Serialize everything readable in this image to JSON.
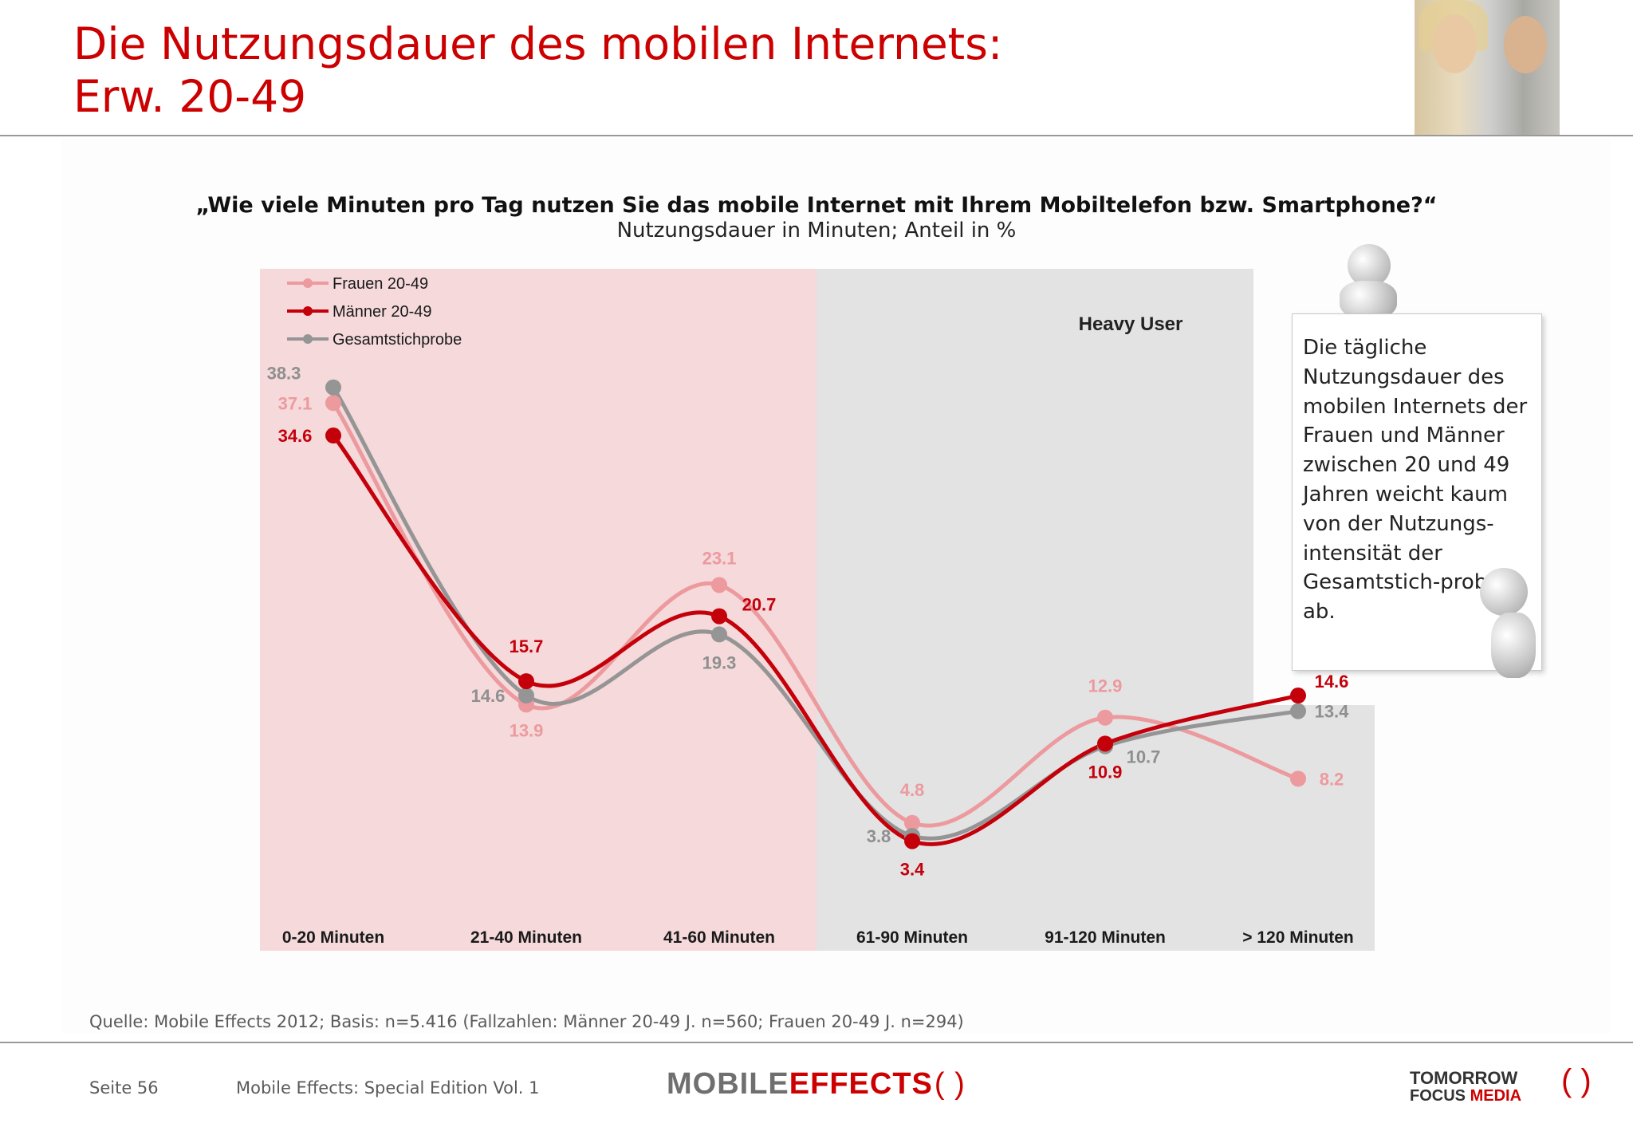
{
  "title": {
    "line1": "Die Nutzungsdauer des mobilen Internets:",
    "line2": "Erw. 20-49"
  },
  "question": "„Wie viele Minuten pro Tag nutzen Sie das mobile Internet mit Ihrem Mobiltelefon bzw. Smartphone?“",
  "subtitle": "Nutzungsdauer in Minuten; Anteil in %",
  "colors": {
    "brand_red": "#cc0000",
    "frauen": "#ec9a9e",
    "maenner": "#c4000a",
    "gesamt": "#959595",
    "light_zone": "#f5d9db",
    "heavy_zone": "#e3e3e4"
  },
  "chart_data": {
    "type": "line",
    "categories": [
      "0-20 Minuten",
      "21-40 Minuten",
      "41-60 Minuten",
      "61-90 Minuten",
      "91-120 Minuten",
      "> 120 Minuten"
    ],
    "series": [
      {
        "name": "Frauen 20-49",
        "color": "#ec9a9e",
        "values": [
          37.1,
          13.9,
          23.1,
          4.8,
          12.9,
          8.2
        ]
      },
      {
        "name": "Männer 20-49",
        "color": "#c4000a",
        "values": [
          34.6,
          15.7,
          20.7,
          3.4,
          10.9,
          14.6
        ]
      },
      {
        "name": "Gesamtstichprobe",
        "color": "#959595",
        "values": [
          38.3,
          14.6,
          19.3,
          3.8,
          10.7,
          13.4
        ]
      }
    ],
    "ylim": [
      0,
      60
    ],
    "grid": false,
    "legend": "top-left",
    "zones": [
      {
        "from": "0-20 Minuten",
        "to": "41-60 Minuten",
        "color": "#f5d9db"
      },
      {
        "from": "61-90 Minuten",
        "to": "> 120 Minuten",
        "color": "#e3e3e4",
        "label": "Heavy User"
      }
    ]
  },
  "note": "Die tägliche Nutzungsdauer des mobilen Internets der Frauen und Männer zwischen 20 und 49 Jahren weicht kaum von der Nutzungs-intensität der Gesamtstich-probe ab.",
  "source": "Quelle: Mobile Effects 2012; Basis: n=5.416 (Fallzahlen: Männer 20-49 J. n=560; Frauen 20-49 J. n=294)",
  "footer": {
    "page": "Seite 56",
    "edition": "Mobile Effects: Special Edition Vol. 1",
    "logo_mobile": "MOBILE",
    "logo_effects": "EFFECTS",
    "logo2_line1": "TOMORROW",
    "logo2_line2a": "FOCUS ",
    "logo2_line2b": "MEDIA"
  }
}
